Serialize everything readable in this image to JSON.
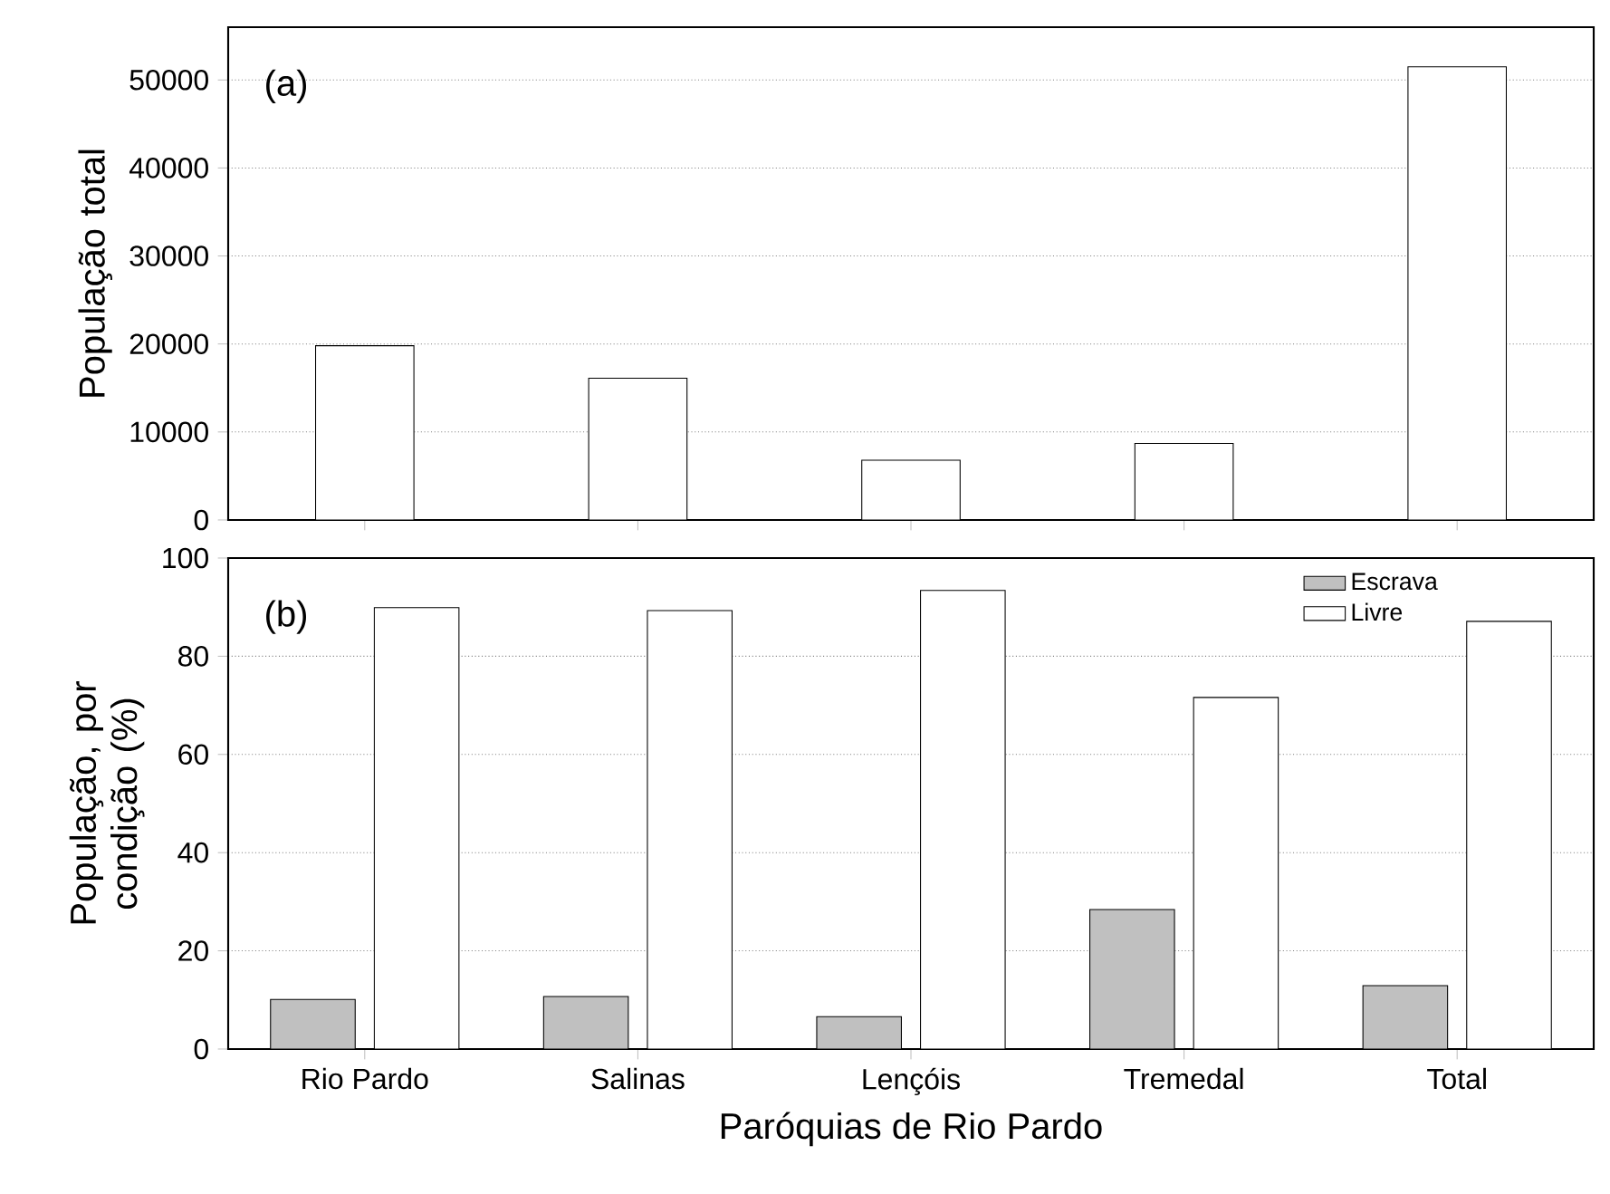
{
  "chart_data": [
    {
      "type": "bar",
      "categories": [
        null,
        null,
        null,
        null,
        null
      ],
      "values": [
        19800,
        16100,
        6800,
        8700,
        51500
      ],
      "color": "#ffffff",
      "ylabel": "População total",
      "annotations": [
        "(a)"
      ],
      "ylim": [
        0,
        56000
      ],
      "yticks": [
        0,
        10000,
        20000,
        30000,
        40000,
        50000
      ],
      "grid": "y",
      "tick_labels": "y"
    },
    {
      "type": "bar",
      "categories": [
        "Rio Pardo",
        "Salinas",
        "Lençóis",
        "Tremedal",
        "Total"
      ],
      "series": [
        {
          "name": "Escrava",
          "color": "#c0c0c0",
          "values": [
            10.1,
            10.7,
            6.6,
            28.4,
            12.9
          ]
        },
        {
          "name": "Livre",
          "color": "#ffffff",
          "values": [
            89.9,
            89.3,
            93.4,
            71.6,
            87.1
          ]
        }
      ],
      "xlabel": "Paróquias de Rio Pardo",
      "ylabel": "População, por condição (%)",
      "annotations": [
        "(b)"
      ],
      "ylim": [
        0,
        100
      ],
      "yticks": [
        0,
        20,
        40,
        60,
        80,
        100
      ],
      "grid": "y",
      "legend": "top right"
    }
  ]
}
